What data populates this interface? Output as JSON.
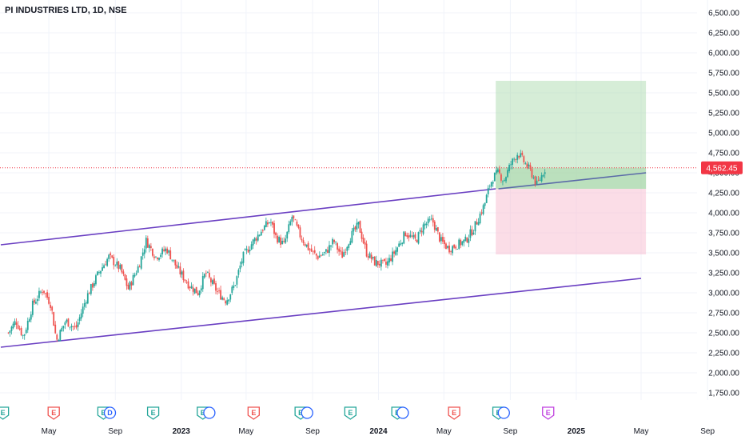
{
  "header": {
    "title": "PI INDUSTRIES LTD, 1D, NSE"
  },
  "colors": {
    "up": "#26a69a",
    "down": "#ef5350",
    "channel": "#6a3fc2",
    "trendline": "#5b6aa8",
    "target_zone": "#a5d6a7",
    "stop_zone": "#f8bbd0",
    "price_line": "#f23645",
    "earnings": "#26a69a",
    "dividend": "#2962ff",
    "split": "#ef5350",
    "other": "#c041e0"
  },
  "chart_data": {
    "type": "candlestick",
    "title": "PI INDUSTRIES LTD, 1D, NSE",
    "y_scale": "linear",
    "ylim": [
      1650,
      6650
    ],
    "y_ticks": [
      1750,
      2000,
      2250,
      2500,
      2750,
      3000,
      3250,
      3500,
      3750,
      4000,
      4250,
      4500,
      4750,
      5000,
      5250,
      5500,
      5750,
      6000,
      6250,
      6500
    ],
    "y_tick_labels": [
      "1,750.00",
      "2,000.00",
      "2,250.00",
      "2,500.00",
      "2,750.00",
      "3,000.00",
      "3,250.00",
      "3,500.00",
      "3,750.00",
      "4,000.00",
      "4,250.00",
      "4,500.00",
      "4,750.00",
      "5,000.00",
      "5,250.00",
      "5,500.00",
      "5,750.00",
      "6,000.00",
      "6,250.00",
      "6,500.00"
    ],
    "x_ticks": [
      {
        "date": "2022-05-01",
        "label": "May",
        "bold": false
      },
      {
        "date": "2022-09-01",
        "label": "Sep",
        "bold": false
      },
      {
        "date": "2023-01-01",
        "label": "2023",
        "bold": true
      },
      {
        "date": "2023-05-01",
        "label": "May",
        "bold": false
      },
      {
        "date": "2023-09-01",
        "label": "Sep",
        "bold": false
      },
      {
        "date": "2024-01-01",
        "label": "2024",
        "bold": true
      },
      {
        "date": "2024-05-01",
        "label": "May",
        "bold": false
      },
      {
        "date": "2024-09-01",
        "label": "Sep",
        "bold": false
      },
      {
        "date": "2025-01-01",
        "label": "2025",
        "bold": true
      },
      {
        "date": "2025-05-01",
        "label": "May",
        "bold": false
      },
      {
        "date": "2025-09-01",
        "label": "Sep",
        "bold": false
      }
    ],
    "last_price": 4562.45,
    "last_price_label": "4,562.45",
    "price_path": [
      [
        "2022-02-15",
        2500
      ],
      [
        "2022-03-01",
        2650
      ],
      [
        "2022-03-15",
        2450
      ],
      [
        "2022-04-01",
        2850
      ],
      [
        "2022-04-20",
        3050
      ],
      [
        "2022-05-05",
        2850
      ],
      [
        "2022-05-15",
        2400
      ],
      [
        "2022-06-01",
        2650
      ],
      [
        "2022-06-20",
        2550
      ],
      [
        "2022-07-10",
        2950
      ],
      [
        "2022-08-01",
        3250
      ],
      [
        "2022-08-20",
        3450
      ],
      [
        "2022-09-10",
        3300
      ],
      [
        "2022-09-25",
        3050
      ],
      [
        "2022-10-15",
        3350
      ],
      [
        "2022-10-28",
        3650
      ],
      [
        "2022-11-15",
        3450
      ],
      [
        "2022-12-05",
        3550
      ],
      [
        "2022-12-25",
        3300
      ],
      [
        "2023-01-15",
        3100
      ],
      [
        "2023-02-01",
        3000
      ],
      [
        "2023-02-15",
        3250
      ],
      [
        "2023-03-10",
        3000
      ],
      [
        "2023-03-25",
        2900
      ],
      [
        "2023-04-10",
        3100
      ],
      [
        "2023-04-25",
        3450
      ],
      [
        "2023-05-15",
        3650
      ],
      [
        "2023-06-01",
        3800
      ],
      [
        "2023-06-15",
        3900
      ],
      [
        "2023-06-25",
        3700
      ],
      [
        "2023-07-10",
        3600
      ],
      [
        "2023-07-25",
        3950
      ],
      [
        "2023-08-10",
        3700
      ],
      [
        "2023-08-25",
        3550
      ],
      [
        "2023-09-10",
        3450
      ],
      [
        "2023-09-25",
        3500
      ],
      [
        "2023-10-10",
        3650
      ],
      [
        "2023-10-25",
        3450
      ],
      [
        "2023-11-10",
        3700
      ],
      [
        "2023-11-25",
        3850
      ],
      [
        "2023-12-10",
        3500
      ],
      [
        "2023-12-25",
        3380
      ],
      [
        "2024-01-15",
        3350
      ],
      [
        "2024-02-01",
        3520
      ],
      [
        "2024-02-20",
        3750
      ],
      [
        "2024-03-10",
        3650
      ],
      [
        "2024-03-25",
        3850
      ],
      [
        "2024-04-10",
        3900
      ],
      [
        "2024-04-25",
        3650
      ],
      [
        "2024-05-10",
        3550
      ],
      [
        "2024-05-25",
        3600
      ],
      [
        "2024-06-10",
        3650
      ],
      [
        "2024-06-25",
        3800
      ],
      [
        "2024-07-05",
        3950
      ],
      [
        "2024-07-15",
        4100
      ],
      [
        "2024-07-25",
        4350
      ],
      [
        "2024-08-01",
        4450
      ],
      [
        "2024-08-10",
        4500
      ],
      [
        "2024-08-20",
        4400
      ],
      [
        "2024-09-01",
        4600
      ],
      [
        "2024-09-15",
        4750
      ],
      [
        "2024-09-25",
        4650
      ],
      [
        "2024-10-10",
        4500
      ],
      [
        "2024-10-20",
        4350
      ],
      [
        "2024-10-28",
        4450
      ],
      [
        "2024-11-05",
        4562.45
      ]
    ],
    "channel_upper": [
      [
        "2022-02-01",
        3600
      ],
      [
        "2024-08-05",
        4300
      ]
    ],
    "channel_lower": [
      [
        "2022-02-01",
        2320
      ],
      [
        "2025-05-01",
        3180
      ]
    ],
    "trendline": [
      [
        "2024-08-10",
        4300
      ],
      [
        "2025-05-10",
        4500
      ]
    ],
    "position": {
      "start": "2024-08-05",
      "end": "2025-05-10",
      "entry": 4300,
      "target": 5650,
      "stop": 3480,
      "price": 4562.45
    },
    "event_markers": [
      {
        "date": "2022-02-05",
        "type": "earnings",
        "letter": "E"
      },
      {
        "date": "2022-05-10",
        "type": "split",
        "letter": "E"
      },
      {
        "date": "2022-08-10",
        "type": "earnings",
        "letter": "E"
      },
      {
        "date": "2022-08-22",
        "type": "dividend",
        "letter": "D"
      },
      {
        "date": "2022-11-10",
        "type": "earnings",
        "letter": "E"
      },
      {
        "date": "2023-02-10",
        "type": "earnings",
        "letter": "E"
      },
      {
        "date": "2023-02-22",
        "type": "dividend",
        "letter": ""
      },
      {
        "date": "2023-05-15",
        "type": "split",
        "letter": "E"
      },
      {
        "date": "2023-08-10",
        "type": "earnings",
        "letter": "E"
      },
      {
        "date": "2023-08-22",
        "type": "dividend",
        "letter": ""
      },
      {
        "date": "2023-11-10",
        "type": "earnings",
        "letter": "E"
      },
      {
        "date": "2024-02-05",
        "type": "earnings",
        "letter": "E"
      },
      {
        "date": "2024-02-15",
        "type": "dividend",
        "letter": ""
      },
      {
        "date": "2024-05-20",
        "type": "split",
        "letter": "E"
      },
      {
        "date": "2024-08-10",
        "type": "earnings",
        "letter": "E"
      },
      {
        "date": "2024-08-20",
        "type": "dividend",
        "letter": ""
      },
      {
        "date": "2024-11-10",
        "type": "other",
        "letter": "E"
      }
    ]
  }
}
